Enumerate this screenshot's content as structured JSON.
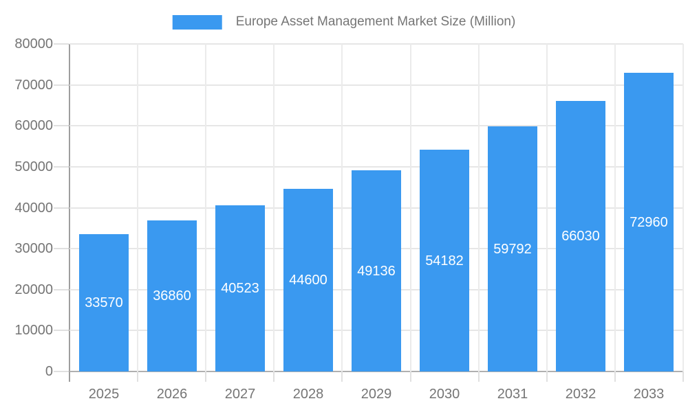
{
  "chart_data": {
    "type": "bar",
    "title": "Europe Asset Management Market Size (Million)",
    "categories": [
      "2025",
      "2026",
      "2027",
      "2028",
      "2029",
      "2030",
      "2031",
      "2032",
      "2033"
    ],
    "values": [
      33570,
      36860,
      40523,
      44600,
      49136,
      54182,
      59792,
      66030,
      72960
    ],
    "xlabel": "",
    "ylabel": "",
    "ylim": [
      0,
      80000
    ],
    "y_ticks": [
      0,
      10000,
      20000,
      30000,
      40000,
      50000,
      60000,
      70000,
      80000
    ],
    "grid": true,
    "legend_position": "top",
    "legend_entries": [
      "Europe Asset Management Market Size (Million)"
    ],
    "colors": {
      "bar": "#3a99f0",
      "value_label": "#ffffff",
      "axis_text": "#757575",
      "gridline_h": "#e6e6e6",
      "gridline_v": "#ebebeb",
      "axis_line": "#9e9e9e"
    }
  }
}
